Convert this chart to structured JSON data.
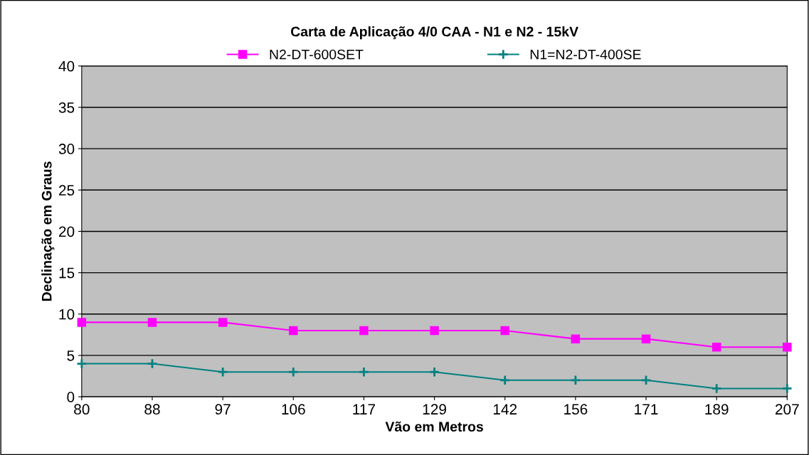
{
  "chart_data": {
    "type": "line",
    "title": "Carta de Aplicação 4/0 CAA - N1 e N2 - 15kV",
    "xlabel": "Vão em Metros",
    "ylabel": "Declinação em Graus",
    "categories": [
      "80",
      "88",
      "97",
      "106",
      "117",
      "129",
      "142",
      "156",
      "171",
      "189",
      "207"
    ],
    "series": [
      {
        "name": "N2-DT-600SET",
        "color": "#ff00ff",
        "marker": "square",
        "values": [
          9,
          9,
          9,
          8,
          8,
          8,
          8,
          7,
          7,
          6,
          6
        ]
      },
      {
        "name": "N1=N2-DT-400SE",
        "color": "#008080",
        "marker": "cross",
        "values": [
          4,
          4,
          3,
          3,
          3,
          3,
          2,
          2,
          2,
          1,
          1
        ]
      }
    ],
    "ylim": [
      0,
      40
    ],
    "yticks": [
      0,
      5,
      10,
      15,
      20,
      25,
      30,
      35,
      40
    ],
    "grid": "y",
    "legend": "top",
    "line_style": "solid"
  }
}
